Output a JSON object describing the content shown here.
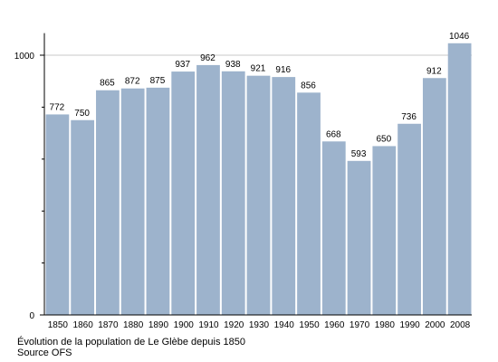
{
  "chart_data": {
    "type": "bar",
    "categories": [
      "1850",
      "1860",
      "1870",
      "1880",
      "1890",
      "1900",
      "1910",
      "1920",
      "1930",
      "1940",
      "1950",
      "1960",
      "1970",
      "1980",
      "1990",
      "2000",
      "2008"
    ],
    "values": [
      772,
      750,
      865,
      872,
      875,
      937,
      962,
      938,
      921,
      916,
      856,
      668,
      593,
      650,
      736,
      912,
      1046
    ],
    "data_labels": [
      "772",
      "750",
      "865",
      "872",
      "875",
      "937",
      "962",
      "938",
      "921",
      "916",
      "856",
      "668",
      "593",
      "650",
      "736",
      "912",
      "1046"
    ],
    "y_ticks": [
      {
        "value": 0,
        "label": "0"
      },
      {
        "value": 1000,
        "label": "1000"
      }
    ],
    "y_minor_ticks": [
      200,
      400,
      600,
      800
    ],
    "ylim": [
      0,
      1085
    ],
    "gridline_values": [
      1000
    ],
    "bar_color": "#9db3cc",
    "grid_color": "#c8c8c8",
    "title": "",
    "xlabel": "",
    "ylabel": ""
  },
  "caption": {
    "line1": "Évolution de la population de Le Glèbe depuis 1850",
    "line2": "Source OFS"
  }
}
